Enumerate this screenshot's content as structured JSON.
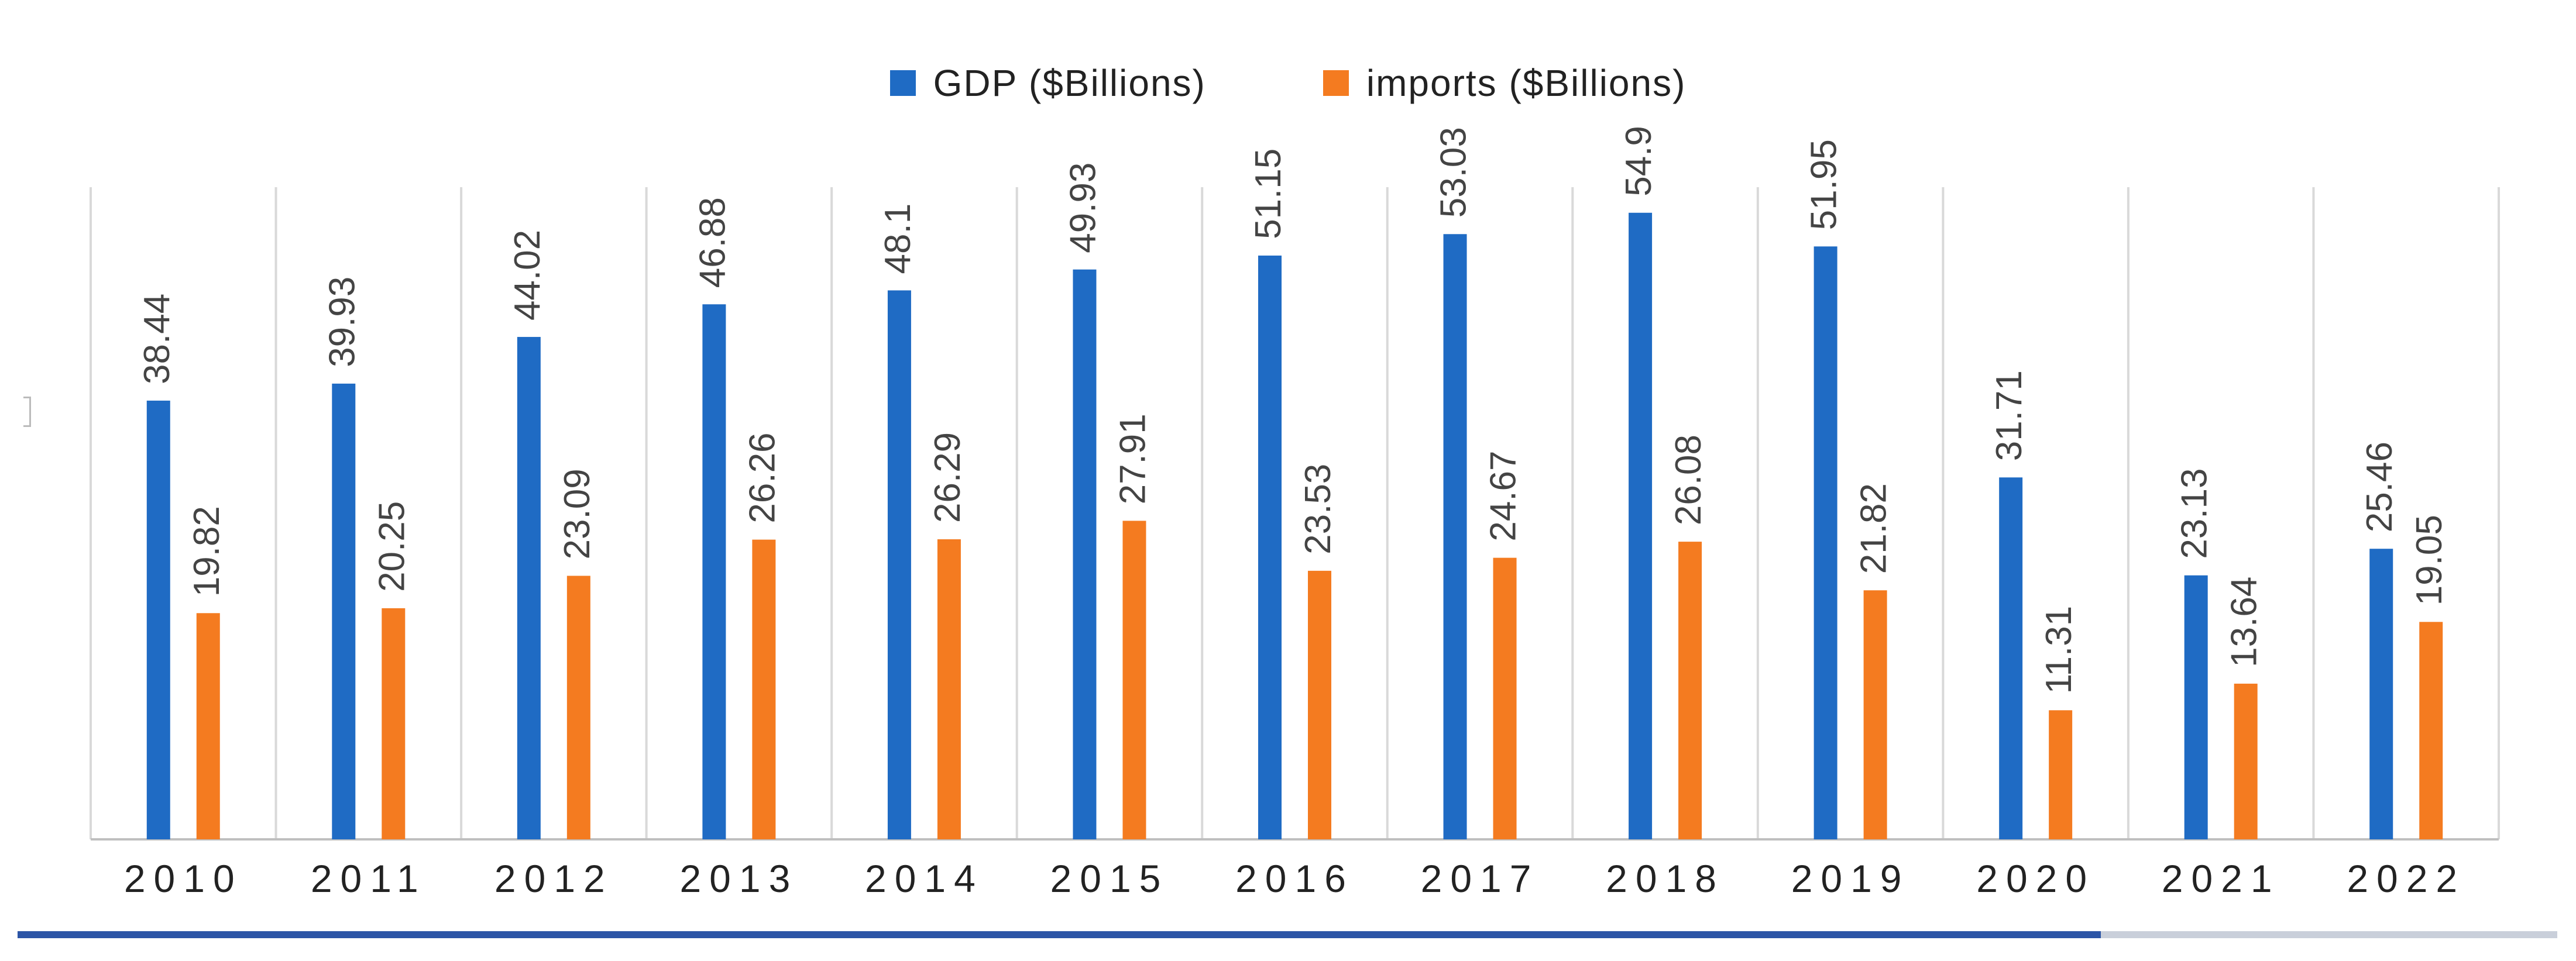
{
  "chart_data": {
    "type": "bar",
    "title": "",
    "xlabel": "",
    "ylabel": "",
    "ylim": [
      0,
      60
    ],
    "grid": "vertical",
    "legend_position": "top-center",
    "categories": [
      "2010",
      "2011",
      "2012",
      "2013",
      "2014",
      "2015",
      "2016",
      "2017",
      "2018",
      "2019",
      "2020",
      "2021",
      "2022"
    ],
    "series": [
      {
        "name": "GDP ($Billions)",
        "color": "#1f6bc4",
        "values": [
          38.44,
          39.93,
          44.02,
          46.88,
          48.1,
          49.93,
          51.15,
          53.03,
          54.9,
          51.95,
          31.71,
          23.13,
          25.46
        ],
        "labels": [
          "38.44",
          "39.93",
          "44.02",
          "46.88",
          "48.1",
          "49.93",
          "51.15",
          "53.03",
          "54.9",
          "51.95",
          "31.71",
          "23.13",
          "25.46"
        ]
      },
      {
        "name": "imports ($Billions)",
        "color": "#f47b20",
        "values": [
          19.82,
          20.25,
          23.09,
          26.26,
          26.29,
          27.91,
          23.53,
          24.67,
          26.08,
          21.82,
          11.31,
          13.64,
          19.05
        ],
        "labels": [
          "19.82",
          "20.25",
          "23.09",
          "26.26",
          "26.29",
          "27.91",
          "23.53",
          "24.67",
          "26.08",
          "21.82",
          "11.31",
          "13.64",
          "19.05"
        ]
      }
    ]
  },
  "legend": {
    "gdp_label": "GDP ($Billions)",
    "imports_label": "imports ($Billions)",
    "gdp_color": "#1f6bc4",
    "imports_color": "#f47b20"
  }
}
